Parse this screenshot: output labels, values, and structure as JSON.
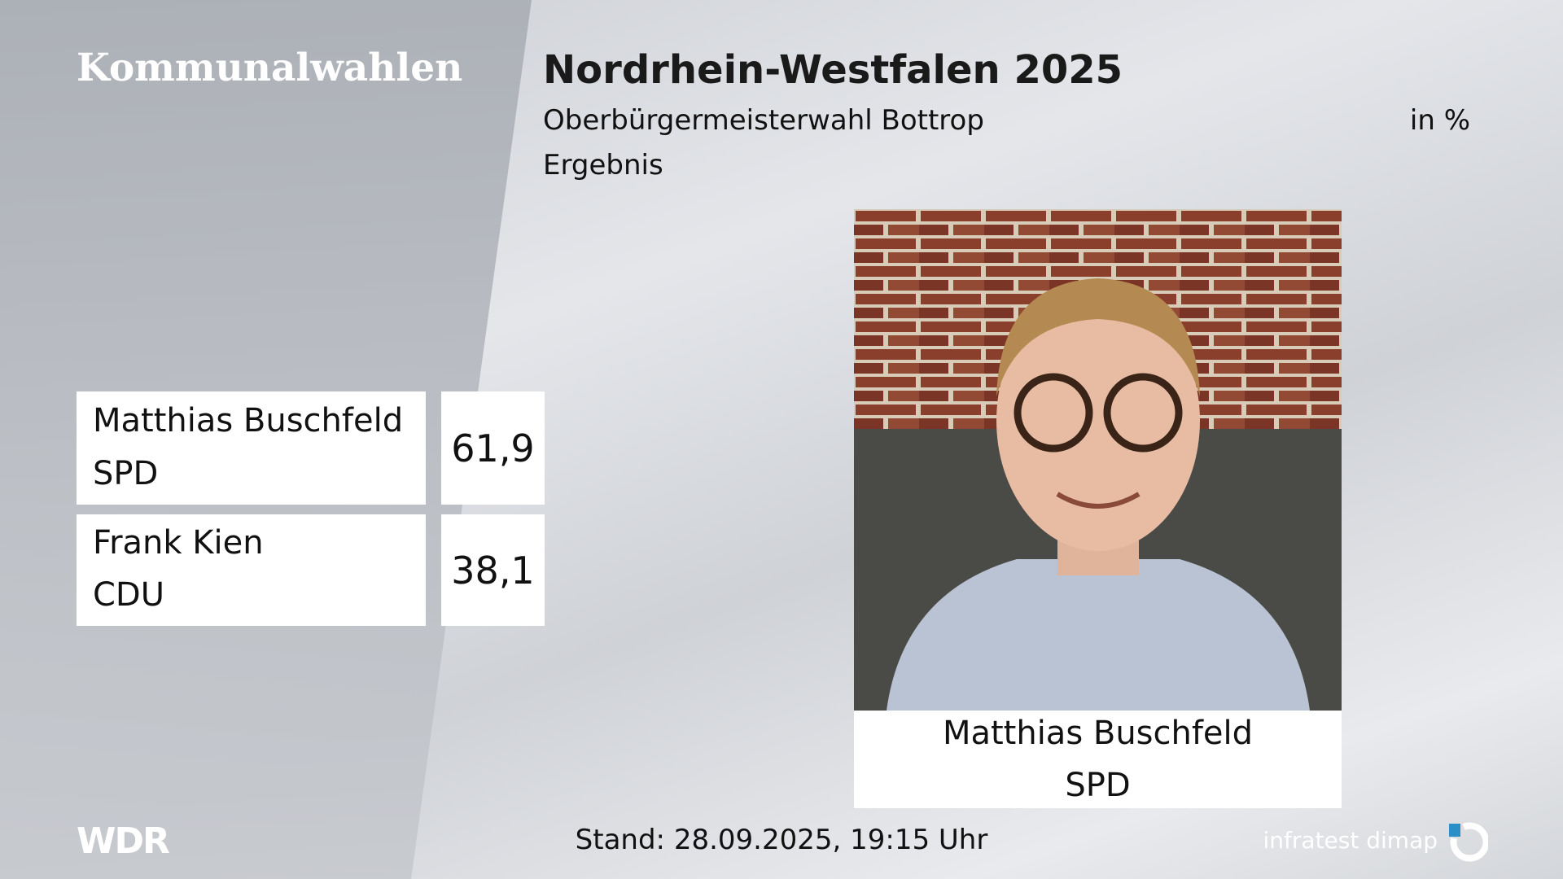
{
  "header": {
    "section": "Kommunalwahlen",
    "title": "Nordrhein-Westfalen 2025",
    "subtitle": "Oberbürgermeisterwahl Bottrop",
    "unit": "in %",
    "status": "Ergebnis"
  },
  "results": {
    "rows": [
      {
        "name": "Matthias Buschfeld",
        "party": "SPD",
        "value": "61,9"
      },
      {
        "name": "Frank Kien",
        "party": "CDU",
        "value": "38,1"
      }
    ]
  },
  "photo": {
    "name": "Matthias Buschfeld",
    "party": "SPD"
  },
  "footer": {
    "broadcaster": "WDR",
    "timestamp": "Stand: 28.09.2025, 19:15 Uhr",
    "source": "infratest dimap"
  }
}
